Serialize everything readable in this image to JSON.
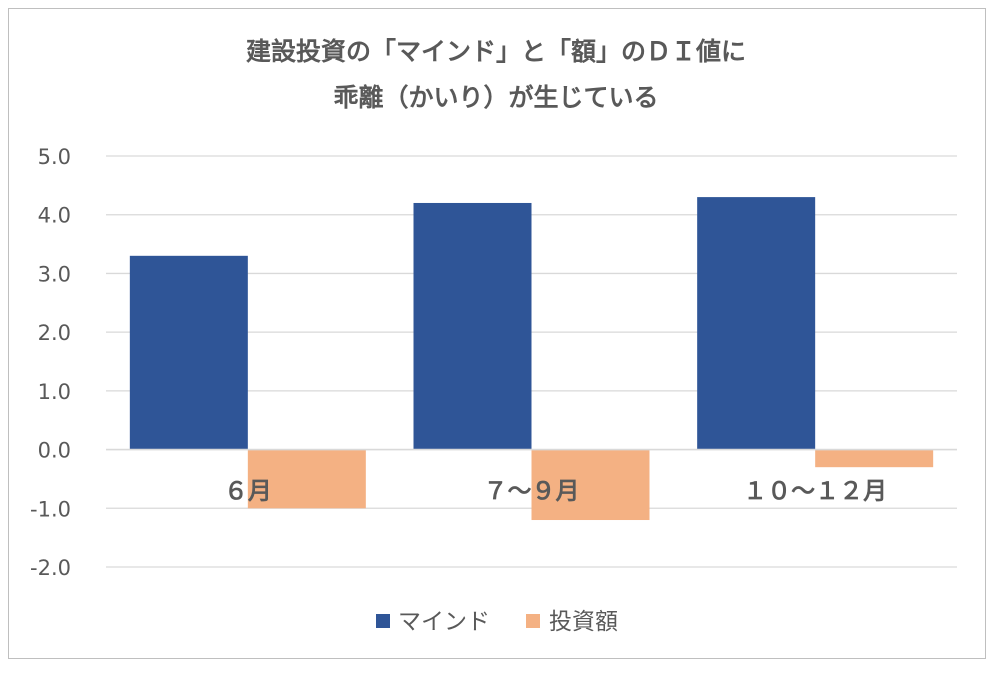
{
  "chart_data": {
    "type": "bar",
    "title_lines": [
      "建設投資の「マインド」と「額」のＤＩ値に",
      "乖離（かいり）が生じている"
    ],
    "categories": [
      "６月",
      "７～９月",
      "１０～１２月"
    ],
    "series": [
      {
        "name": "マインド",
        "color": "#2f5597",
        "values": [
          3.3,
          4.2,
          4.3
        ]
      },
      {
        "name": "投資額",
        "color": "#f4b183",
        "values": [
          -1.0,
          -1.2,
          -0.3
        ]
      }
    ],
    "ylim": [
      -2.0,
      5.0
    ],
    "yticks": [
      "5.0",
      "4.0",
      "3.0",
      "2.0",
      "1.0",
      "0.0",
      "-1.0",
      "-2.0"
    ],
    "grid": true,
    "legend_position": "bottom"
  }
}
